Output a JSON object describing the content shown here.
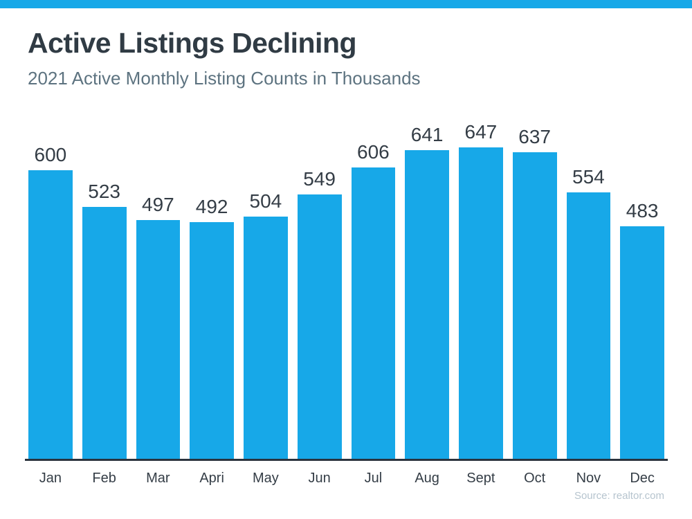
{
  "page": {
    "background": "#ffffff",
    "accent_color": "#17a8e8"
  },
  "chart_data": {
    "type": "bar",
    "title": "Active Listings Declining",
    "subtitle": "2021 Active Monthly Listing Counts in Thousands",
    "categories": [
      "Jan",
      "Feb",
      "Mar",
      "Apri",
      "May",
      "Jun",
      "Jul",
      "Aug",
      "Sept",
      "Oct",
      "Nov",
      "Dec"
    ],
    "values": [
      600,
      523,
      497,
      492,
      504,
      549,
      606,
      641,
      647,
      637,
      554,
      483
    ],
    "bar_color": "#17a8e8",
    "value_labels_shown": true,
    "xlabel": "",
    "ylabel": "",
    "ylim": [
      0,
      700
    ],
    "grid": false,
    "legend": false,
    "value_label_color": "#343d46",
    "axis_line_color": "#2a333d",
    "source": "Source: realtor.com"
  }
}
